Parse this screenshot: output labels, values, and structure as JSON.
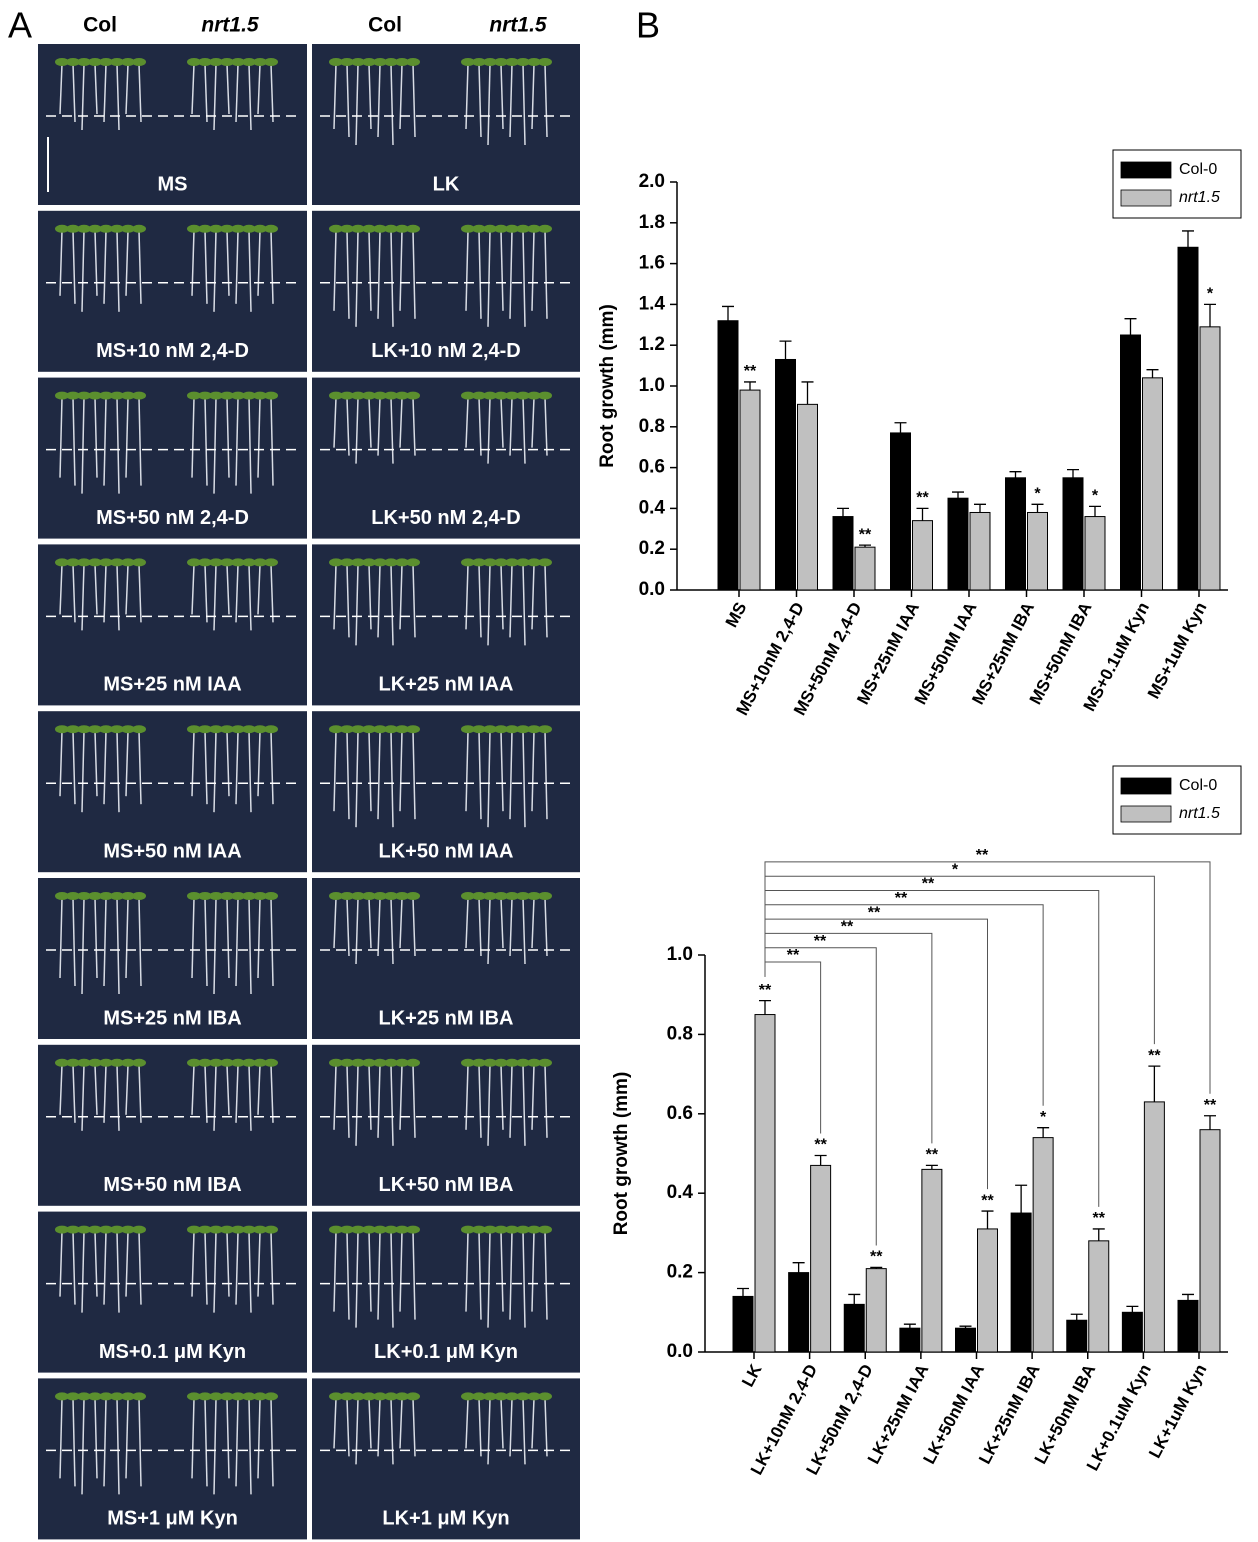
{
  "panel_a": {
    "label": "A",
    "column_headers": [
      "Col",
      "nrt1.5",
      "Col",
      "nrt1.5"
    ],
    "photos": [
      [
        "MS",
        "LK"
      ],
      [
        "MS+10 nM 2,4-D",
        "LK+10 nM 2,4-D"
      ],
      [
        "MS+50 nM 2,4-D",
        "LK+50 nM 2,4-D"
      ],
      [
        "MS+25 nM IAA",
        "LK+25 nM IAA"
      ],
      [
        "MS+50 nM IAA",
        "LK+50 nM IAA"
      ],
      [
        "MS+25 nM IBA",
        "LK+25 nM IBA"
      ],
      [
        "MS+50 nM IBA",
        "LK+50 nM IBA"
      ],
      [
        "MS+0.1 μM Kyn",
        "LK+0.1 μM Kyn"
      ],
      [
        "MS+1 μM Kyn",
        "LK+1 μM Kyn"
      ]
    ]
  },
  "panel_b": {
    "label": "B"
  },
  "chart_data": [
    {
      "type": "bar",
      "y_label": "Root growth (mm)",
      "legend": "upper right",
      "categories": [
        "MS",
        "MS+10nM 2,4-D",
        "MS+50nM 2,4-D",
        "MS+25nM IAA",
        "MS+50nM IAA",
        "MS+25nM IBA",
        "MS+50nM IBA",
        "MS+0.1uM Kyn",
        "MS+1uM Kyn"
      ],
      "series": [
        {
          "name": "Col-0",
          "color": "#000000",
          "values": [
            1.32,
            1.13,
            0.36,
            0.77,
            0.45,
            0.55,
            0.55,
            1.25,
            1.68
          ],
          "errors": [
            0.07,
            0.09,
            0.04,
            0.05,
            0.03,
            0.03,
            0.04,
            0.08,
            0.08
          ]
        },
        {
          "name": "nrt1.5",
          "color": "#c0c0c0",
          "values": [
            0.98,
            0.91,
            0.21,
            0.34,
            0.38,
            0.38,
            0.36,
            1.04,
            1.29
          ],
          "errors": [
            0.04,
            0.11,
            0.01,
            0.06,
            0.04,
            0.04,
            0.05,
            0.04,
            0.11
          ],
          "significance": [
            "**",
            null,
            "**",
            "**",
            null,
            "*",
            "*",
            null,
            "*"
          ]
        }
      ],
      "ylim": [
        0,
        2
      ],
      "yticks": [
        {
          "value": 0,
          "label": "0.0"
        },
        0.2,
        0.4,
        0.6,
        0.8,
        {
          "value": 1,
          "label": "1.0"
        },
        1.2,
        1.4,
        1.6,
        1.8,
        {
          "value": 2,
          "label": "2.0"
        }
      ]
    },
    {
      "type": "bar",
      "y_label": "Root growth (mm)",
      "legend": "upper right",
      "categories": [
        "LK",
        "LK+10nM 2,4-D",
        "LK+50nM 2,4-D",
        "LK+25nM IAA",
        "LK+50nM IAA",
        "LK+25nM IBA",
        "LK+50nM IBA",
        "LK+0.1uM Kyn",
        "LK+1uM Kyn"
      ],
      "series": [
        {
          "name": "Col-0",
          "color": "#000000",
          "values": [
            0.14,
            0.2,
            0.12,
            0.06,
            0.06,
            0.35,
            0.08,
            0.1,
            0.13
          ],
          "errors": [
            0.02,
            0.025,
            0.025,
            0.01,
            0.005,
            0.07,
            0.015,
            0.015,
            0.015
          ]
        },
        {
          "name": "nrt1.5",
          "color": "#c0c0c0",
          "values": [
            0.85,
            0.47,
            0.21,
            0.46,
            0.31,
            0.54,
            0.28,
            0.63,
            0.56
          ],
          "errors": [
            0.035,
            0.025,
            0.003,
            0.01,
            0.045,
            0.025,
            0.03,
            0.09,
            0.035
          ],
          "significance": [
            "**",
            "**",
            "**",
            "**",
            "**",
            "*",
            "**",
            "**",
            "**"
          ]
        }
      ],
      "comparisons": [
        "**",
        "**",
        "**",
        "**",
        "**",
        "**",
        "*",
        "**"
      ],
      "ylim": [
        0,
        1
      ],
      "yticks": [
        {
          "value": 0,
          "label": "0.0"
        },
        0.2,
        0.4,
        0.6,
        0.8,
        {
          "value": 1,
          "label": "1.0"
        }
      ]
    }
  ]
}
